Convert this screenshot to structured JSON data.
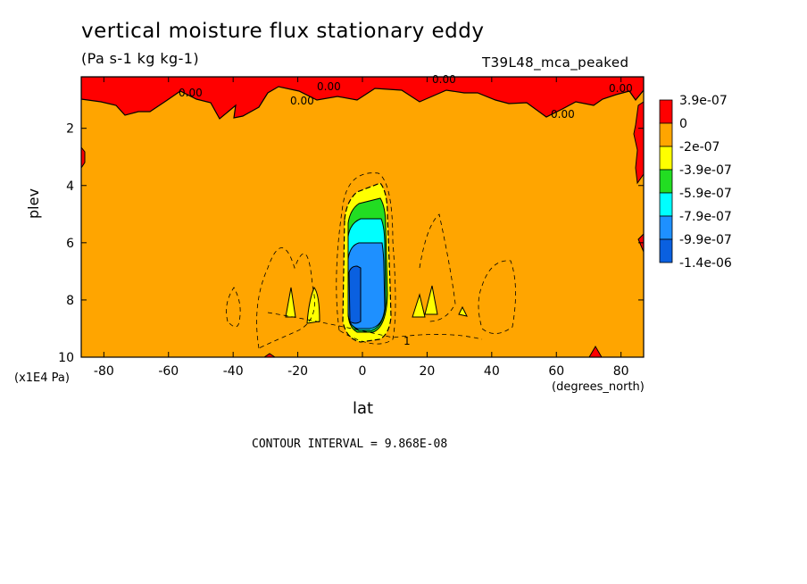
{
  "chart_data": {
    "type": "heatmap",
    "title": "vertical moisture flux stationary eddy",
    "subtitle": "(Pa s-1 kg kg-1)",
    "run_label": "T39L48_mca_peaked",
    "xlabel": "lat",
    "ylabel": "plev",
    "x_units": "(degrees_north)",
    "y_units": "(x1E4 Pa)",
    "xlim": [
      -87,
      87
    ],
    "ylim": [
      0.2,
      10
    ],
    "x_ticks": [
      "-80",
      "-60",
      "-40",
      "-20",
      "0",
      "20",
      "40",
      "60",
      "80"
    ],
    "y_ticks": [
      "2",
      "4",
      "6",
      "8",
      "10"
    ],
    "contour_interval_text": "CONTOUR INTERVAL = 9.868E-08",
    "contour_labels": [
      "0.00",
      "0.00",
      "0.00",
      "0.00",
      "0.00",
      "0.00",
      "1"
    ],
    "legend": {
      "levels": [
        "3.9e-07",
        "0",
        "-2e-07",
        "-3.9e-07",
        "-5.9e-07",
        "-7.9e-07",
        "-9.9e-07",
        "-1.4e-06"
      ],
      "colors": [
        "#ff0000",
        "#ffa500",
        "#ffff00",
        "#22dd22",
        "#00ffff",
        "#1e90ff",
        "#0a60e0"
      ]
    }
  }
}
